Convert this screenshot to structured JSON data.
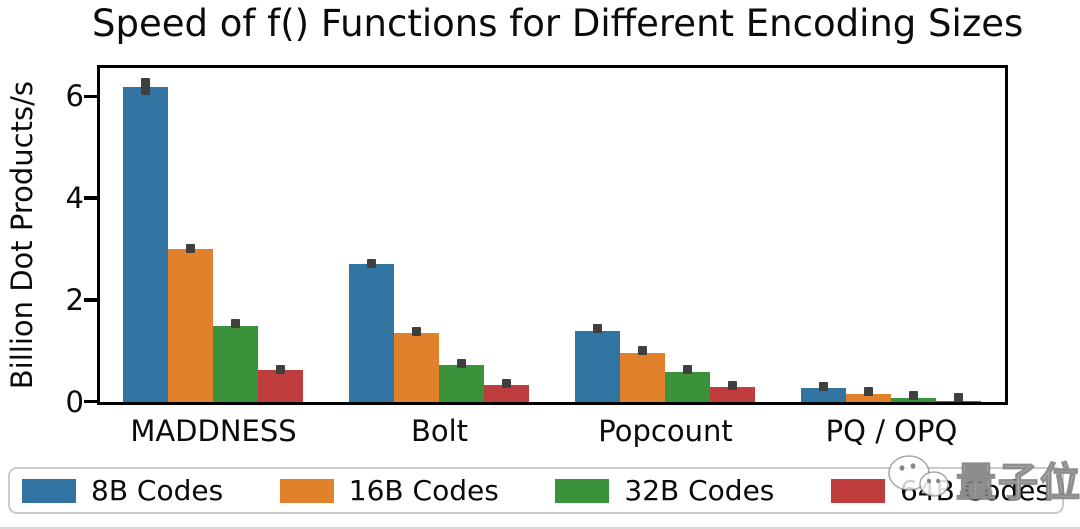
{
  "watermark": {
    "text": "量子位",
    "icon": "wechat-bubbles-icon"
  },
  "chart_data": {
    "type": "bar",
    "title": "Speed of f() Functions for Different Encoding Sizes",
    "ylabel": "Billion Dot Products/s",
    "xlabel": "",
    "categories": [
      "MADDNESS",
      "Bolt",
      "Popcount",
      "PQ / OPQ"
    ],
    "series": [
      {
        "name": "8B Codes",
        "color": "#3274a1",
        "values": [
          6.2,
          2.71,
          1.4,
          0.27
        ],
        "errors": [
          0.17,
          0.08,
          0.05,
          0.05
        ]
      },
      {
        "name": "16B Codes",
        "color": "#e1812c",
        "values": [
          3.0,
          1.36,
          0.97,
          0.16
        ],
        "errors": [
          0.07,
          0.06,
          0.05,
          0.05
        ]
      },
      {
        "name": "32B Codes",
        "color": "#3a923a",
        "values": [
          1.5,
          0.72,
          0.6,
          0.08
        ],
        "errors": [
          0.05,
          0.05,
          0.05,
          0.04
        ]
      },
      {
        "name": "64B Codes",
        "color": "#c03d3e",
        "values": [
          0.62,
          0.33,
          0.29,
          0.02
        ],
        "errors": [
          0.06,
          0.05,
          0.05,
          0.03
        ]
      }
    ],
    "ylim": [
      0,
      6.55
    ],
    "y_ticks": [
      0,
      2,
      4,
      6
    ],
    "grid": false,
    "legend_position": "bottom",
    "bar_group_width_fraction": 0.8,
    "error_bar_color": "#3f3f3f",
    "axis_color": "#000000"
  }
}
